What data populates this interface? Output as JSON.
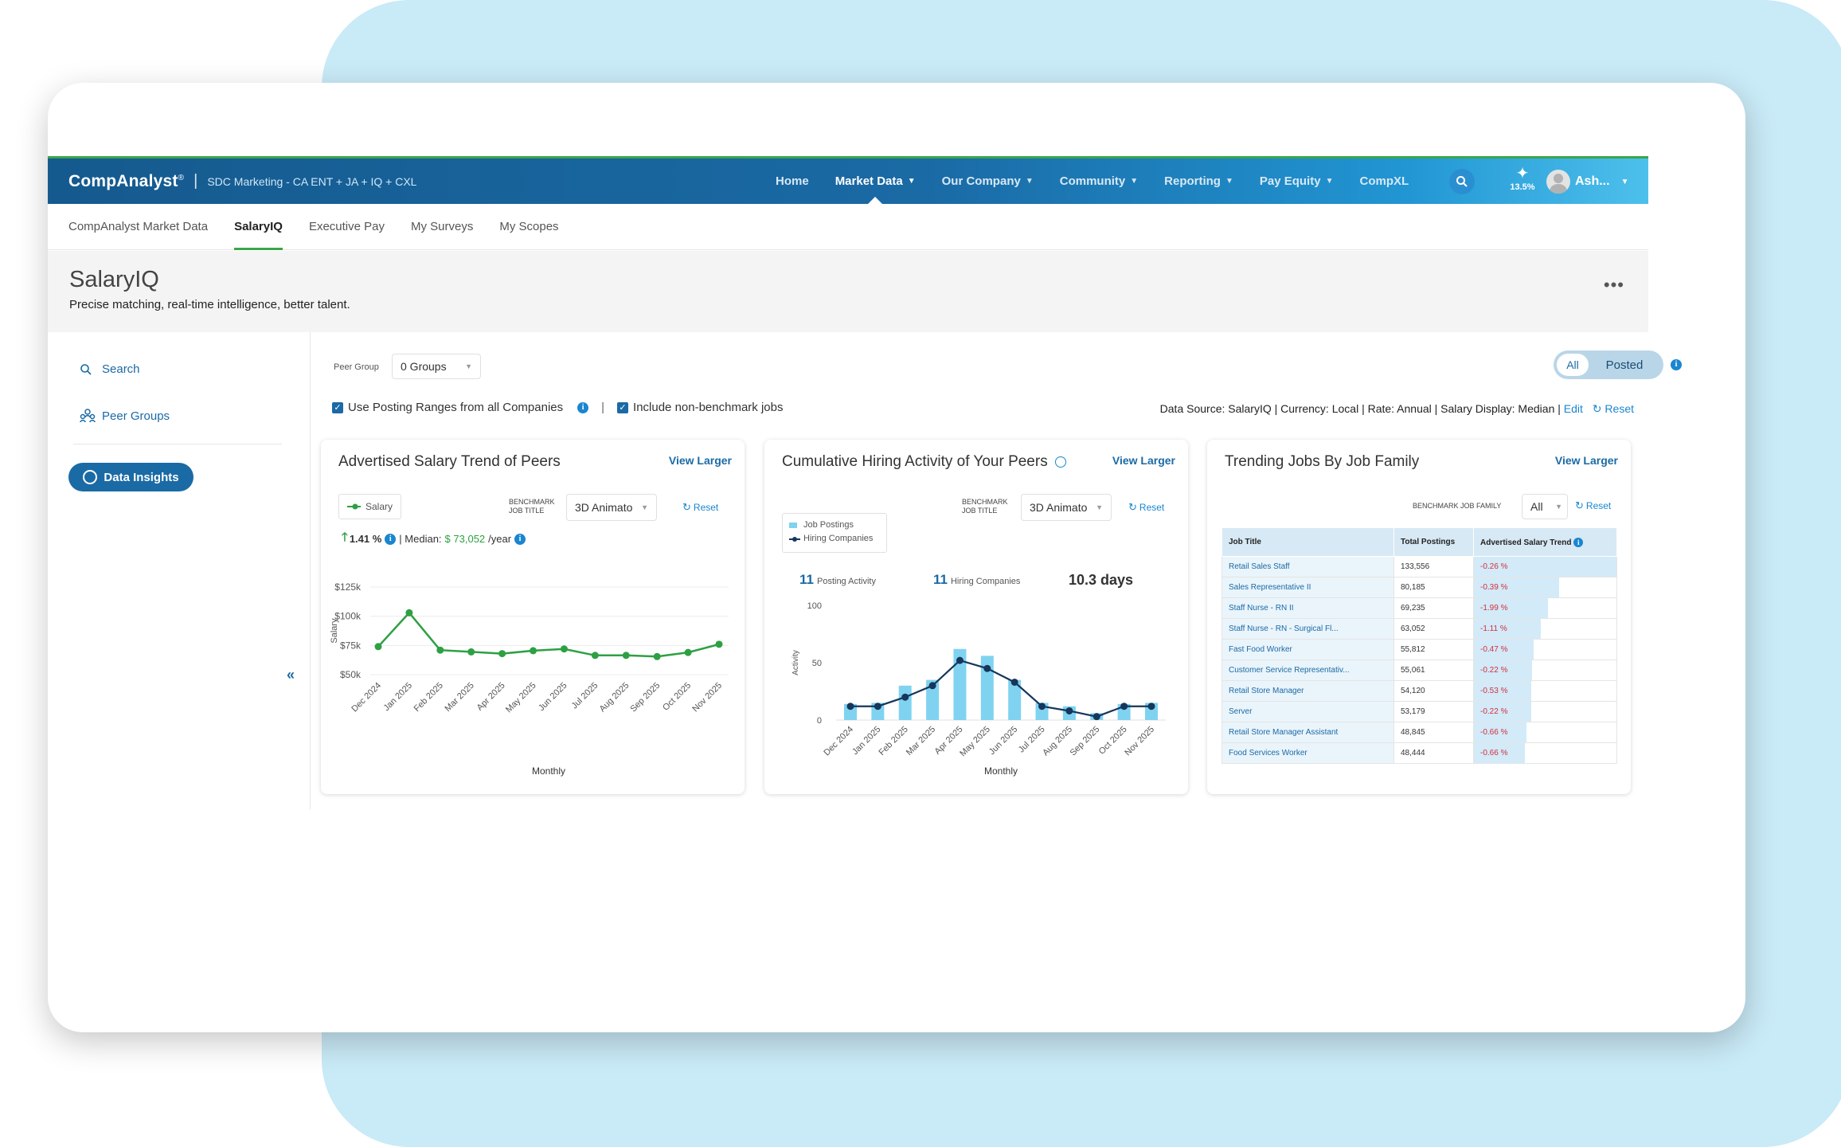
{
  "app": {
    "brand": "CompAnalyst",
    "brand_mark": "®",
    "org": "SDC Marketing - CA ENT + JA + IQ + CXL",
    "nav": [
      {
        "label": "Home",
        "caret": false
      },
      {
        "label": "Market Data",
        "caret": true,
        "active": true
      },
      {
        "label": "Our Company",
        "caret": true
      },
      {
        "label": "Community",
        "caret": true
      },
      {
        "label": "Reporting",
        "caret": true
      },
      {
        "label": "Pay Equity",
        "caret": true
      },
      {
        "label": "CompXL",
        "caret": false
      }
    ],
    "spark_pct": "13.5%",
    "user": "Ash..."
  },
  "subnav": [
    "CompAnalyst Market Data",
    "SalaryIQ",
    "Executive Pay",
    "My Surveys",
    "My Scopes"
  ],
  "subnav_active": "SalaryIQ",
  "page": {
    "title": "SalaryIQ",
    "subtitle": "Precise matching, real-time intelligence, better talent."
  },
  "sidebar": {
    "search": "Search",
    "peer_groups": "Peer Groups",
    "data_insights": "Data Insights",
    "collapse": "«"
  },
  "filters": {
    "peer_group_label": "Peer Group",
    "peer_group_value": "0 Groups",
    "toggle_all": "All",
    "toggle_posted": "Posted",
    "use_posting_ranges": "Use Posting Ranges from all Companies",
    "include_non_benchmark": "Include non-benchmark jobs",
    "data_source": "Data Source: SalaryIQ | Currency: Local | Rate: Annual | Salary Display: Median |",
    "edit": "Edit",
    "reset": "Reset"
  },
  "salary_panel": {
    "title": "Advertised Salary Trend of Peers",
    "view_larger": "View Larger",
    "legend": "Salary",
    "bench_label": "Benchmark Job Title",
    "bench_value": "3D Animato",
    "reset": "Reset",
    "change": "1.41 %",
    "median_label": "| Median:",
    "median_value": "$ 73,052",
    "median_unit": "/year"
  },
  "hiring_panel": {
    "title": "Cumulative Hiring Activity of Your Peers",
    "view_larger": "View Larger",
    "bench_label": "Benchmark Job Title",
    "bench_value": "3D Animato",
    "reset": "Reset",
    "legend_postings": "Job Postings",
    "legend_companies": "Hiring Companies",
    "stat1_value": "11",
    "stat1_label": "Posting Activity",
    "stat2_value": "11",
    "stat2_label": "Hiring Companies",
    "stat3_value": "10.3 days"
  },
  "trending_panel": {
    "title": "Trending Jobs By Job Family",
    "view_larger": "View Larger",
    "bench_label": "Benchmark Job Family",
    "bench_value": "All",
    "reset": "Reset",
    "columns": [
      "Job Title",
      "Total Postings",
      "Advertised Salary Trend"
    ],
    "rows": [
      {
        "title": "Retail Sales Staff",
        "postings": "133,556",
        "trend": "-0.26 %",
        "bar": 1.0
      },
      {
        "title": "Sales Representative II",
        "postings": "80,185",
        "trend": "-0.39 %",
        "bar": 0.6
      },
      {
        "title": "Staff Nurse - RN II",
        "postings": "69,235",
        "trend": "-1.99 %",
        "bar": 0.52
      },
      {
        "title": "Staff Nurse - RN - Surgical Fl...",
        "postings": "63,052",
        "trend": "-1.11 %",
        "bar": 0.47
      },
      {
        "title": "Fast Food Worker",
        "postings": "55,812",
        "trend": "-0.47 %",
        "bar": 0.42
      },
      {
        "title": "Customer Service Representativ...",
        "postings": "55,061",
        "trend": "-0.22 %",
        "bar": 0.41
      },
      {
        "title": "Retail Store Manager",
        "postings": "54,120",
        "trend": "-0.53 %",
        "bar": 0.4
      },
      {
        "title": "Server",
        "postings": "53,179",
        "trend": "-0.22 %",
        "bar": 0.4
      },
      {
        "title": "Retail Store Manager Assistant",
        "postings": "48,845",
        "trend": "-0.66 %",
        "bar": 0.37
      },
      {
        "title": "Food Services Worker",
        "postings": "48,444",
        "trend": "-0.66 %",
        "bar": 0.36
      }
    ]
  },
  "chart_data": [
    {
      "type": "line",
      "x": [
        "Dec 2024",
        "Jan 2025",
        "Feb 2025",
        "Mar 2025",
        "Apr 2025",
        "May 2025",
        "Jun 2025",
        "Jul 2025",
        "Aug 2025",
        "Sep 2025",
        "Oct 2025",
        "Nov 2025"
      ],
      "series": [
        {
          "name": "Salary",
          "values": [
            74000,
            103000,
            71000,
            69500,
            68000,
            70500,
            72000,
            66500,
            66500,
            65500,
            69000,
            76000
          ],
          "color": "#2ea043"
        }
      ],
      "xlabel": "Monthly",
      "ylabel": "Salary",
      "yticks": [
        "$50k",
        "$75k",
        "$100k",
        "$125k"
      ],
      "ylim": [
        50000,
        125000
      ]
    },
    {
      "type": "bar",
      "x": [
        "Dec 2024",
        "Jan 2025",
        "Feb 2025",
        "Mar 2025",
        "Apr 2025",
        "May 2025",
        "Jun 2025",
        "Jul 2025",
        "Aug 2025",
        "Sep 2025",
        "Oct 2025",
        "Nov 2025"
      ],
      "series": [
        {
          "name": "Job Postings",
          "type": "bar",
          "values": [
            14,
            15,
            30,
            35,
            62,
            56,
            35,
            15,
            12,
            6,
            14,
            15
          ],
          "color": "#7fd3f0"
        },
        {
          "name": "Hiring Companies",
          "type": "line",
          "values": [
            12,
            12,
            20,
            30,
            52,
            45,
            33,
            12,
            8,
            3,
            12,
            12
          ],
          "color": "#16365c"
        }
      ],
      "xlabel": "Monthly",
      "ylabel": "Activity",
      "yticks": [
        "0",
        "50",
        "100"
      ],
      "ylim": [
        0,
        100
      ]
    }
  ]
}
